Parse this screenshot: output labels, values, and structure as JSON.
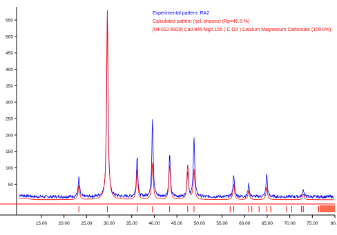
{
  "legend": [
    {
      "text": "Experimental pattern: RA2",
      "color": "#0000ff"
    },
    {
      "text": "Calculated pattern (sel. phases) (Rp=46.5 %)",
      "color": "#ff0000"
    },
    {
      "text": "[04-012-6929] Ca0.845 Mg0.155 ( C O3 ) Calcium Magnesium Carbonate (100.0%)",
      "color": "#ff0000"
    }
  ],
  "chart_data": {
    "type": "line",
    "title": "",
    "xlabel": "",
    "ylabel": "",
    "xlim": [
      9.5,
      80
    ],
    "ylim": [
      -10,
      590
    ],
    "x_ticks": [
      15,
      20,
      25,
      30,
      35,
      40,
      45,
      50,
      55,
      60,
      65,
      70,
      75,
      80
    ],
    "x_tick_labels": [
      "15.00",
      "20.00",
      "25.00",
      "30.00",
      "35.00",
      "40.00",
      "45.00",
      "50.00",
      "55.00",
      "60.00",
      "65.00",
      "70.00",
      "75.00",
      "80.0"
    ],
    "y_ticks": [
      50,
      100,
      150,
      200,
      250,
      300,
      350,
      400,
      450,
      500,
      550
    ],
    "y_tick_labels": [
      "50",
      "100",
      "150",
      "200",
      "250",
      "300",
      "350",
      "400",
      "450",
      "500",
      "550"
    ],
    "grid": false,
    "legend_position": "top-right",
    "colors": {
      "experimental": "#0000ff",
      "calculated": "#ff0000",
      "markers": "#ff0000",
      "reference": "#ff6a4d"
    },
    "series": [
      {
        "name": "Experimental pattern: RA2",
        "color": "#0000ff",
        "baseline": 12,
        "peaks": [
          [
            23.3,
            70
          ],
          [
            29.6,
            580
          ],
          [
            36.2,
            135
          ],
          [
            39.6,
            250
          ],
          [
            43.4,
            140
          ],
          [
            47.4,
            90
          ],
          [
            48.8,
            195
          ],
          [
            57.6,
            80
          ],
          [
            60.9,
            50
          ],
          [
            64.9,
            80
          ],
          [
            73.0,
            35
          ]
        ]
      },
      {
        "name": "Calculated pattern (sel. phases) (Rp=46.5 %)",
        "color": "#ff0000",
        "baseline": 3,
        "peaks": [
          [
            23.3,
            45
          ],
          [
            29.6,
            580
          ],
          [
            36.2,
            95
          ],
          [
            39.6,
            115
          ],
          [
            43.4,
            110
          ],
          [
            47.4,
            110
          ],
          [
            48.8,
            95
          ],
          [
            57.6,
            50
          ],
          [
            60.9,
            30
          ],
          [
            64.9,
            40
          ],
          [
            73.0,
            20
          ]
        ]
      }
    ],
    "phase_markers": [
      23.3,
      29.6,
      36.2,
      39.6,
      43.4,
      47.4,
      48.8,
      56.8,
      57.6,
      60.9,
      61.6,
      63.2,
      64.9,
      65.8,
      69.3,
      70.4,
      72.6,
      73.0,
      76.4,
      77.4,
      78.2,
      79.1
    ],
    "reference_block_range": [
      76.6,
      80
    ]
  }
}
